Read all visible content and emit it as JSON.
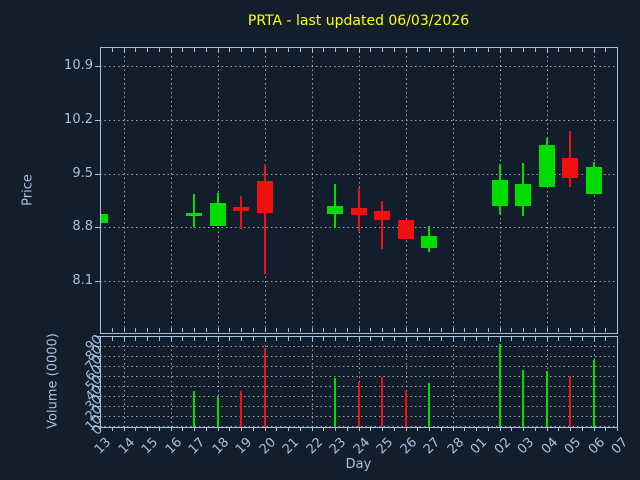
{
  "title": "PRTA - last updated 06/03/2026",
  "axes": {
    "x_label": "Day",
    "price_label": "Price",
    "volume_label": "Volume (0000)"
  },
  "colors": {
    "background": "#131e2c",
    "title": "#ffff00",
    "axis": "#a6c1dd",
    "grid": "#c3c8cf",
    "up": "#00dd00",
    "down": "#f01010"
  },
  "chart_data": {
    "type": "candlestick",
    "title": "PRTA - last updated 06/03/2026",
    "xlabel": "Day",
    "ylabel": "Price",
    "volume_ylabel": "Volume (0000)",
    "legend": "none",
    "grid": true,
    "x_categories": [
      "13",
      "14",
      "15",
      "16",
      "17",
      "18",
      "19",
      "20",
      "21",
      "22",
      "23",
      "24",
      "25",
      "26",
      "27",
      "28",
      "01",
      "02",
      "03",
      "04",
      "05",
      "06",
      "07"
    ],
    "price_ticks": [
      8.1,
      8.8,
      9.5,
      10.2,
      10.9
    ],
    "price_range": [
      7.42,
      11.15
    ],
    "volume_ticks": [
      0,
      10,
      20,
      30,
      40,
      50,
      60,
      70,
      80,
      90
    ],
    "volume_range": [
      0,
      90
    ],
    "series": [
      {
        "day": "13",
        "open": 8.85,
        "high": 8.97,
        "low": 8.85,
        "close": 8.97,
        "volume": null
      },
      {
        "day": "17",
        "open": 8.95,
        "high": 9.23,
        "low": 8.8,
        "close": 8.99,
        "volume": 35
      },
      {
        "day": "18",
        "open": 8.82,
        "high": 9.24,
        "low": 8.82,
        "close": 9.11,
        "volume": 29
      },
      {
        "day": "19",
        "open": 9.06,
        "high": 9.21,
        "low": 8.78,
        "close": 9.01,
        "volume": 35
      },
      {
        "day": "20",
        "open": 9.4,
        "high": 9.62,
        "low": 8.19,
        "close": 8.99,
        "volume": 78
      },
      {
        "day": "23",
        "open": 8.97,
        "high": 9.36,
        "low": 8.79,
        "close": 9.08,
        "volume": 48
      },
      {
        "day": "24",
        "open": 9.05,
        "high": 9.31,
        "low": 8.75,
        "close": 8.96,
        "volume": 44
      },
      {
        "day": "25",
        "open": 9.01,
        "high": 9.14,
        "low": 8.52,
        "close": 8.89,
        "volume": 49
      },
      {
        "day": "26",
        "open": 8.9,
        "high": 8.9,
        "low": 8.64,
        "close": 8.64,
        "volume": 35
      },
      {
        "day": "27",
        "open": 8.53,
        "high": 8.81,
        "low": 8.47,
        "close": 8.68,
        "volume": 43
      },
      {
        "day": "02",
        "open": 9.08,
        "high": 9.62,
        "low": 8.97,
        "close": 9.41,
        "volume": 82
      },
      {
        "day": "03",
        "open": 9.08,
        "high": 9.64,
        "low": 8.94,
        "close": 9.36,
        "volume": 56
      },
      {
        "day": "04",
        "open": 9.33,
        "high": 9.96,
        "low": 9.33,
        "close": 9.87,
        "volume": 55
      },
      {
        "day": "05",
        "open": 9.7,
        "high": 10.06,
        "low": 9.33,
        "close": 9.44,
        "volume": 50
      },
      {
        "day": "06",
        "open": 9.23,
        "high": 9.65,
        "low": 9.23,
        "close": 9.59,
        "volume": 66
      }
    ]
  }
}
